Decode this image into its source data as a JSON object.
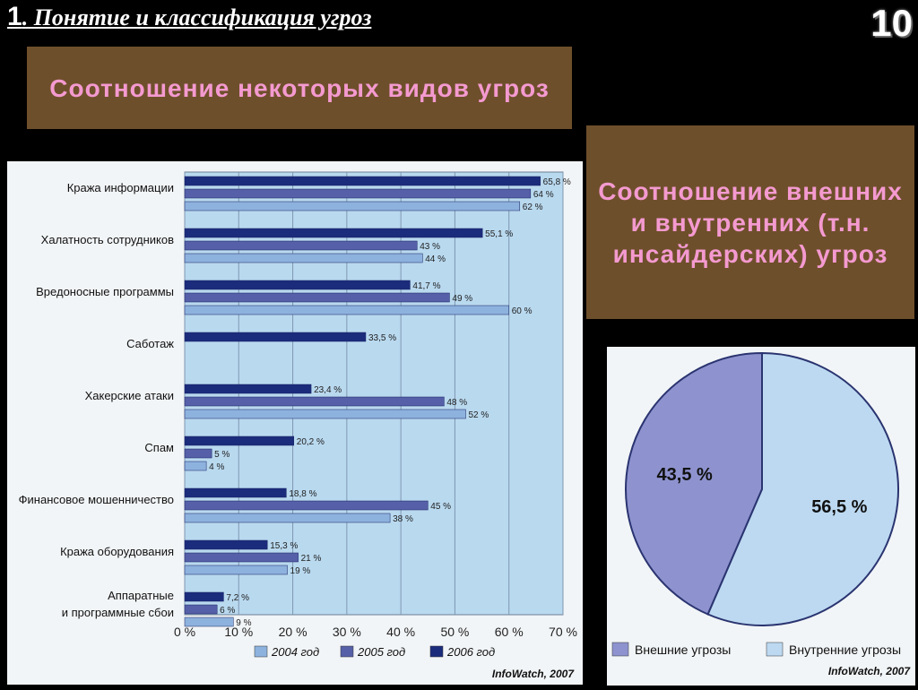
{
  "slide": {
    "title_num": "1",
    "title_text": ". Понятие и классификация угроз",
    "page_number": "10"
  },
  "boxes": {
    "box1": "Соотношение некоторых видов угроз",
    "box2": "Соотношение внешних и внутренних (т.н. инсайдерских) угроз"
  },
  "chart_data": [
    {
      "type": "bar",
      "orientation": "horizontal",
      "categories": [
        "Кража информации",
        "Халатность сотрудников",
        "Вредоносные программы",
        "Саботаж",
        "Хакерские атаки",
        "Спам",
        "Финансовое мошенничество",
        "Кража оборудования",
        "Аппаратные и программные сбои"
      ],
      "series": [
        {
          "name": "2006 год",
          "values": [
            65.8,
            55.1,
            41.7,
            33.5,
            23.4,
            20.2,
            18.8,
            15.3,
            7.2
          ],
          "labels": [
            "65,8 %",
            "55,1 %",
            "41,7 %",
            "33,5 %",
            "23,4 %",
            "20,2 %",
            "18,8 %",
            "15,3 %",
            "7,2 %"
          ],
          "color": "#1c2c7c"
        },
        {
          "name": "2005 год",
          "values": [
            64,
            43,
            49,
            null,
            48,
            5,
            45,
            21,
            6
          ],
          "labels": [
            "64 %",
            "43 %",
            "49 %",
            "",
            "48 %",
            "5 %",
            "45 %",
            "21 %",
            "6 %"
          ],
          "color": "#5660a8"
        },
        {
          "name": "2004 год",
          "values": [
            62,
            44,
            60,
            null,
            52,
            4,
            38,
            19,
            9
          ],
          "labels": [
            "62 %",
            "44 %",
            "60 %",
            "",
            "52 %",
            "4 %",
            "38 %",
            "19 %",
            "9 %"
          ],
          "color": "#8eb2de"
        }
      ],
      "category_lines": [
        [
          "Кража информации"
        ],
        [
          "Халатность сотрудников"
        ],
        [
          "Вредоносные программы"
        ],
        [
          "Саботаж"
        ],
        [
          "Хакерские атаки"
        ],
        [
          "Спам"
        ],
        [
          "Финансовое мошенничество"
        ],
        [
          "Кража оборудования"
        ],
        [
          "Аппаратные",
          "и программные сбои"
        ]
      ],
      "xticks": [
        "0 %",
        "10 %",
        "20 %",
        "30 %",
        "40 %",
        "50 %",
        "60 %",
        "70 %"
      ],
      "xlim": [
        0,
        70
      ],
      "grid": true,
      "legend": [
        "2004 год",
        "2005 год",
        "2006 год"
      ],
      "legend_placement": "bottom",
      "source": "InfoWatch, 2007",
      "plot_bg": "#b9d9ef"
    },
    {
      "type": "pie",
      "slices": [
        {
          "name": "Внешние угрозы",
          "value": 43.5,
          "label": "43,5 %",
          "color": "#8e93cf"
        },
        {
          "name": "Внутренние угрозы",
          "value": 56.5,
          "label": "56,5 %",
          "color": "#bcd9f1"
        }
      ],
      "legend_placement": "bottom",
      "source": "InfoWatch, 2007"
    }
  ]
}
